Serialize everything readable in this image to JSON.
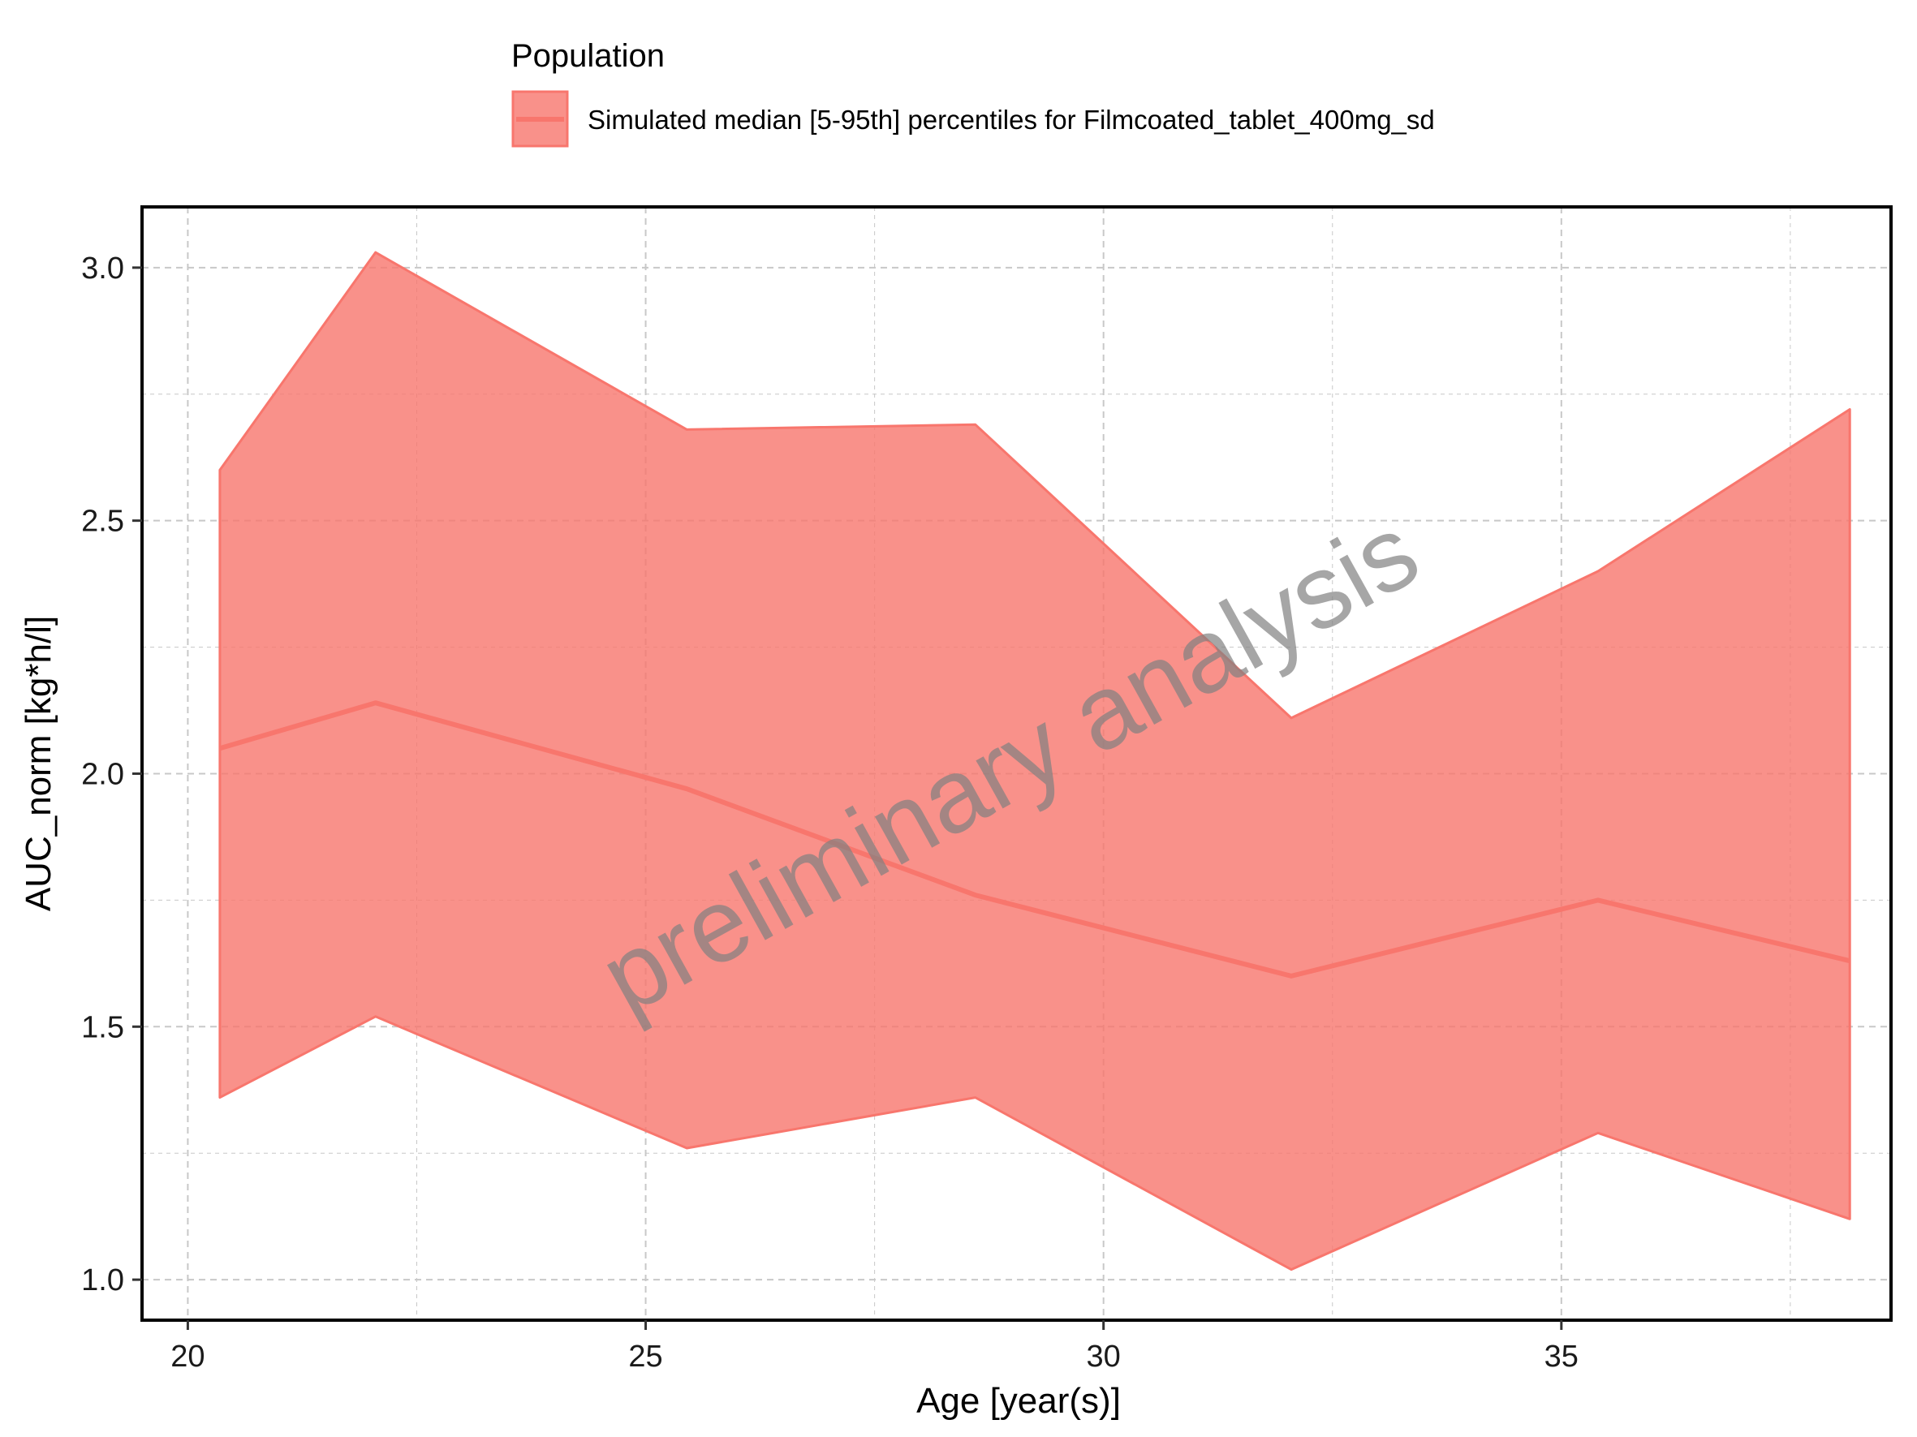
{
  "legend": {
    "title": "Population",
    "entries": [
      "Simulated median [5-95th] percentiles for Filmcoated_tablet_400mg_sd"
    ]
  },
  "watermark": "preliminary analysis",
  "colors": {
    "band_fill": "#F8766D",
    "median_line": "#F8766D",
    "watermark": "#808080",
    "grid": "#c8c8c8",
    "panel_border": "#000000"
  },
  "chart_data": {
    "type": "area",
    "xlabel": "Age [year(s)]",
    "ylabel": "AUC_norm [kg*h/l]",
    "xlim": [
      19.5,
      38.6
    ],
    "ylim": [
      0.92,
      3.12
    ],
    "x_ticks": [
      20,
      25,
      30,
      35
    ],
    "y_ticks": [
      1.0,
      1.5,
      2.0,
      2.5,
      3.0
    ],
    "x_tick_labels": [
      "20",
      "25",
      "30",
      "35"
    ],
    "y_tick_labels": [
      "1.0",
      "1.5",
      "2.0",
      "2.5",
      "3.0"
    ],
    "grid": true,
    "legend_position": "top",
    "series": [
      {
        "name": "Simulated median [5-95th] percentiles for Filmcoated_tablet_400mg_sd",
        "x": [
          20.35,
          22.05,
          25.45,
          28.6,
          32.05,
          35.4,
          38.15
        ],
        "median": [
          2.05,
          2.14,
          1.97,
          1.76,
          1.6,
          1.75,
          1.63
        ],
        "p5": [
          1.36,
          1.52,
          1.26,
          1.36,
          1.02,
          1.29,
          1.12
        ],
        "p95": [
          2.6,
          3.03,
          2.68,
          2.69,
          2.11,
          2.4,
          2.72
        ]
      }
    ]
  }
}
